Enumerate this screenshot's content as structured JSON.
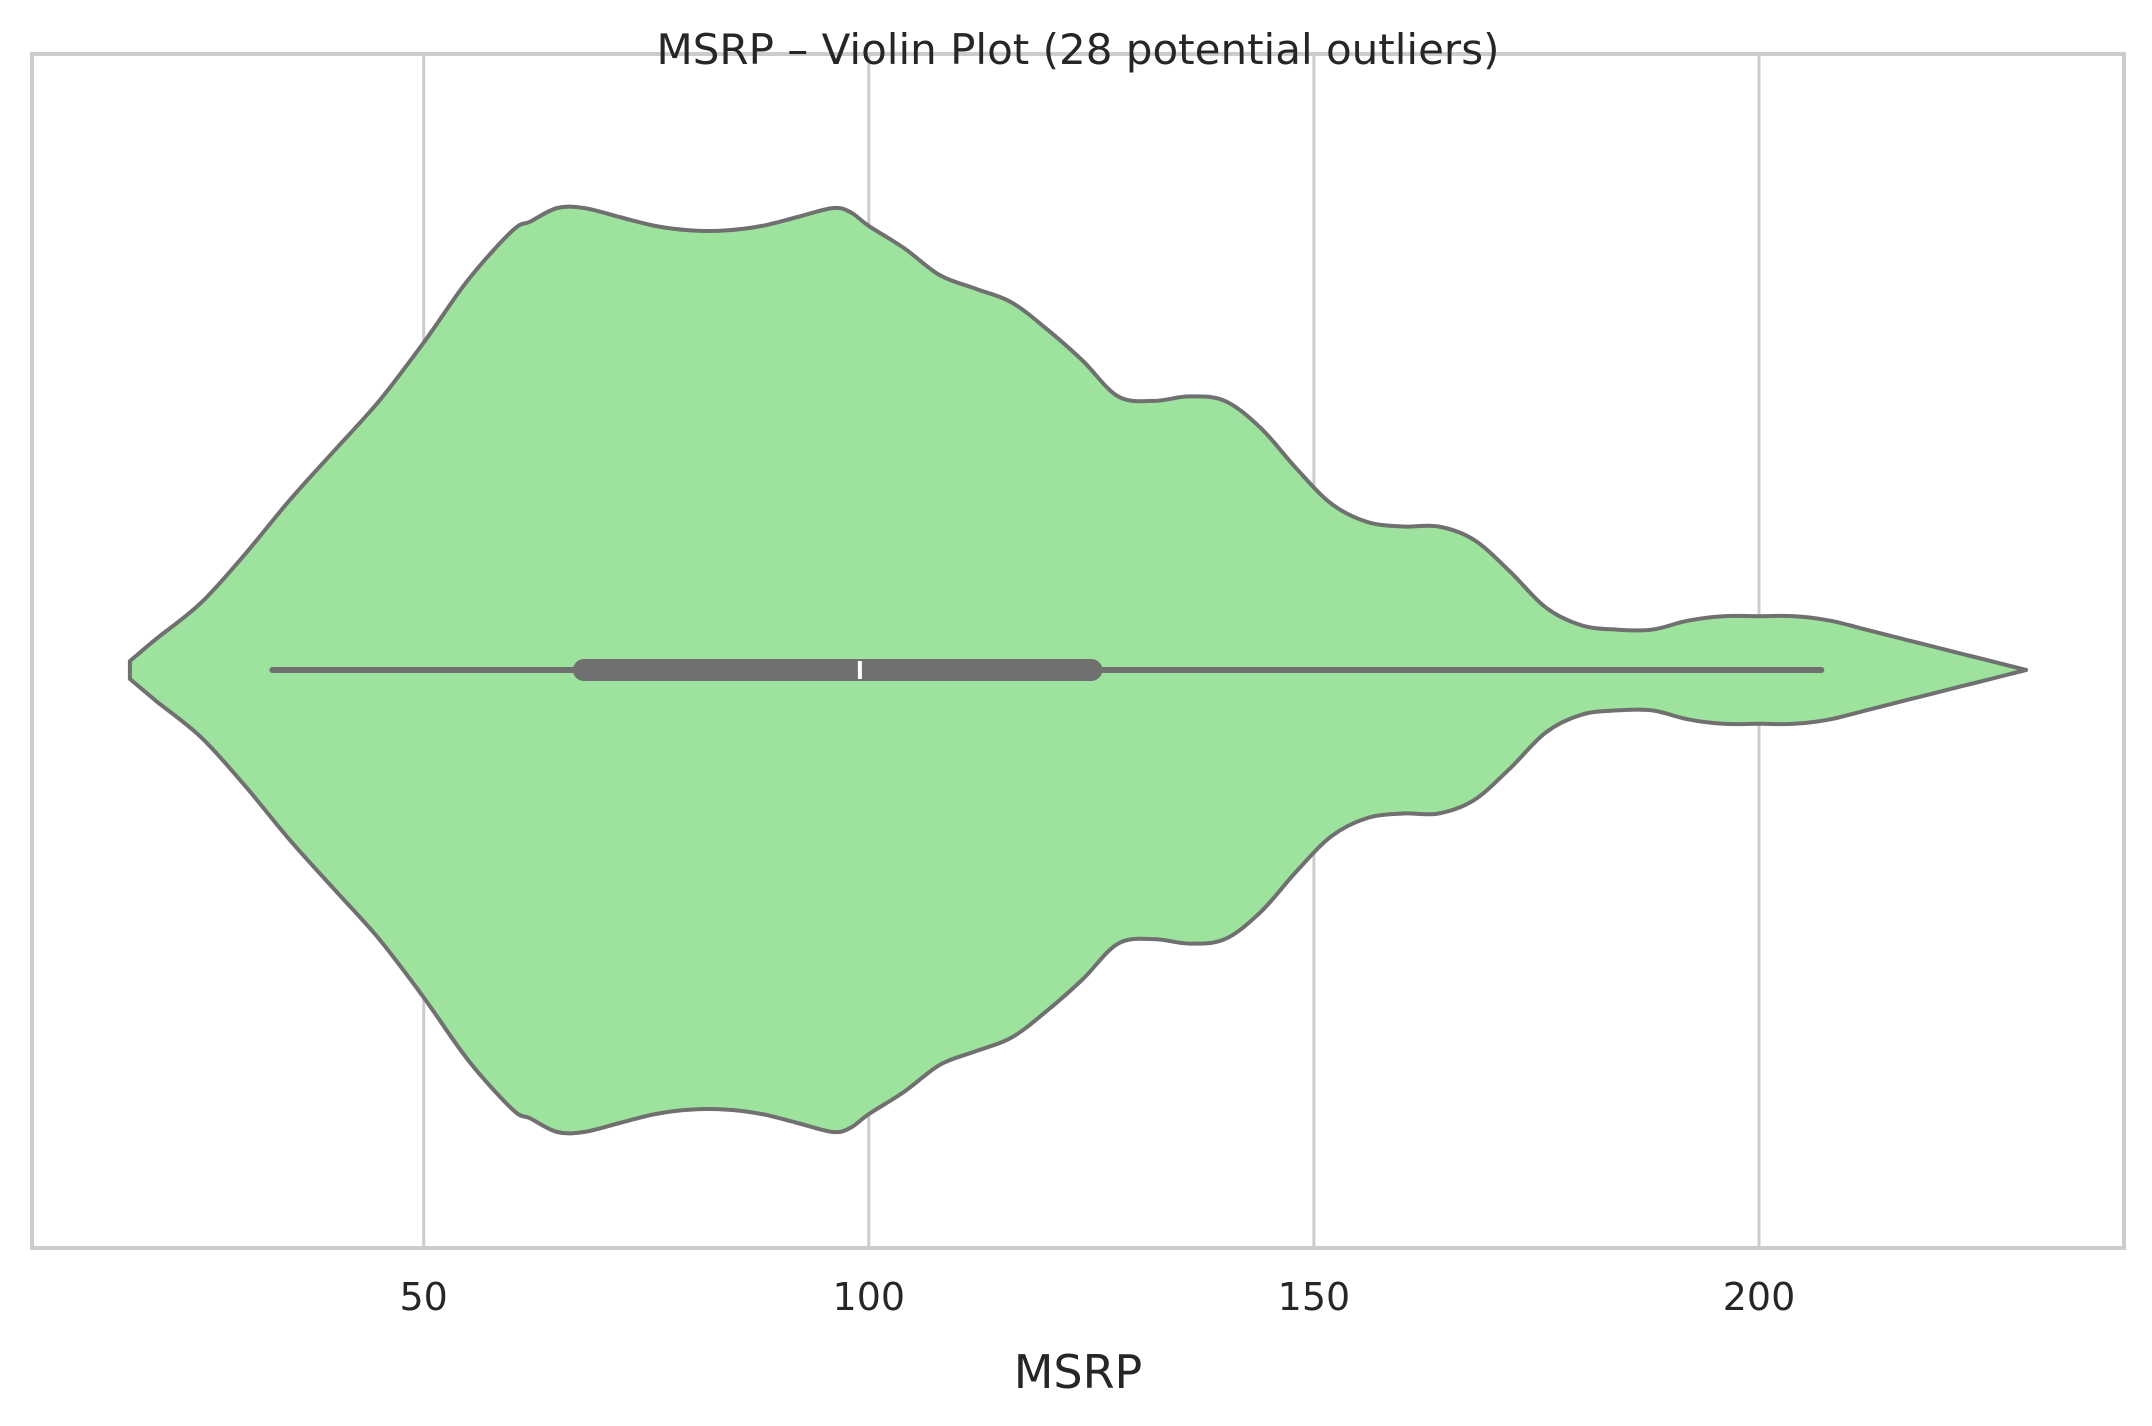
{
  "chart_data": {
    "type": "violin",
    "title": "MSRP – Violin Plot (28 potential outliers)",
    "xlabel": "MSRP",
    "ylabel": "",
    "orientation": "horizontal",
    "xlim": [
      6,
      241
    ],
    "xticks": [
      50,
      100,
      150,
      200
    ],
    "xtick_labels": [
      "50",
      "100",
      "150",
      "200"
    ],
    "grid": true,
    "legend": "none",
    "colors": {
      "fill": "#9de29d",
      "outline": "#707070",
      "grid": "#cccccc",
      "spine": "#cccccc",
      "median_marker": "#ffffff"
    },
    "summary": {
      "min": 17,
      "whisker_low": 33,
      "q1": 68,
      "median": 99,
      "q3": 125,
      "whisker_high": 207,
      "max": 230,
      "outlier_count": 28
    },
    "density": {
      "x": [
        17,
        20,
        25,
        30,
        35,
        40,
        45,
        50,
        55,
        60,
        62,
        65,
        68,
        72,
        76,
        80,
        84,
        88,
        92,
        96,
        98,
        100,
        104,
        108,
        112,
        116,
        120,
        124,
        128,
        132,
        136,
        140,
        144,
        148,
        152,
        156,
        160,
        164,
        168,
        172,
        176,
        180,
        184,
        188,
        192,
        196,
        200,
        204,
        208,
        212,
        216,
        220,
        224,
        228,
        230
      ],
      "values": [
        0.02,
        0.07,
        0.15,
        0.26,
        0.38,
        0.49,
        0.6,
        0.73,
        0.87,
        0.98,
        1.0,
        1.03,
        1.03,
        1.01,
        0.99,
        0.98,
        0.98,
        0.99,
        1.01,
        1.03,
        1.02,
        0.99,
        0.94,
        0.88,
        0.85,
        0.82,
        0.76,
        0.69,
        0.61,
        0.6,
        0.61,
        0.6,
        0.54,
        0.45,
        0.37,
        0.33,
        0.32,
        0.32,
        0.29,
        0.22,
        0.14,
        0.1,
        0.09,
        0.09,
        0.11,
        0.12,
        0.12,
        0.12,
        0.11,
        0.09,
        0.07,
        0.05,
        0.03,
        0.01,
        0.0
      ]
    }
  }
}
